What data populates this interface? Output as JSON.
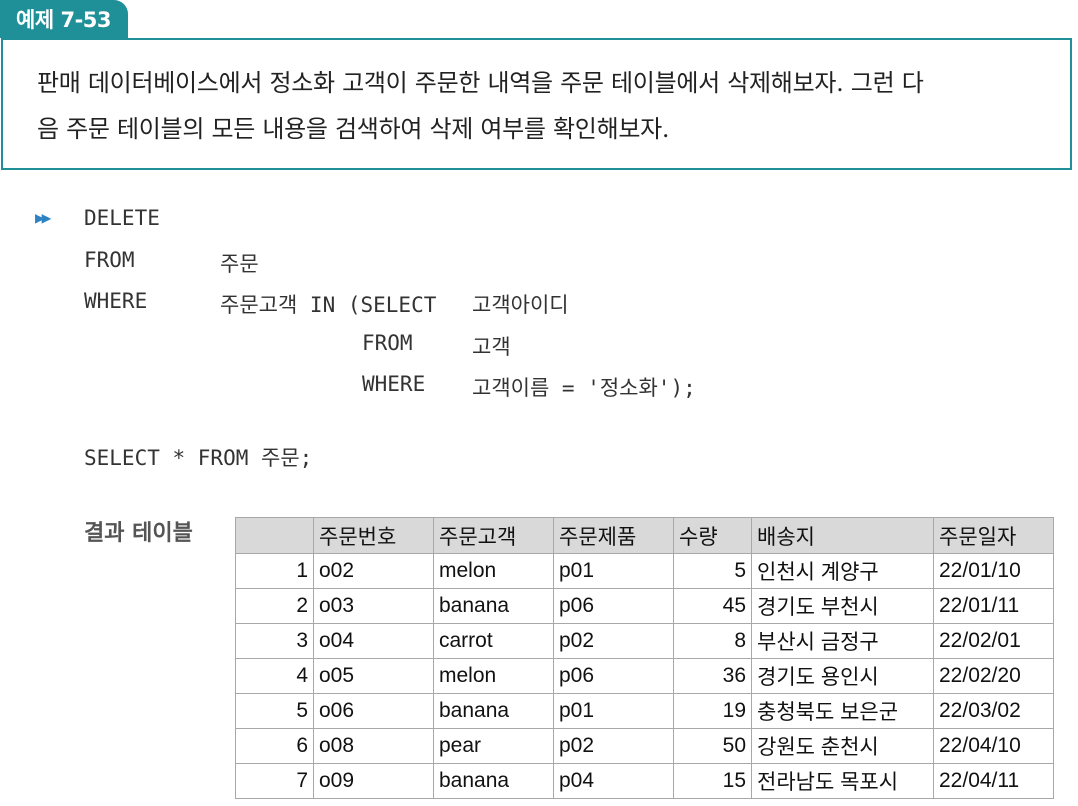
{
  "tag": "예제 7-53",
  "problem": {
    "line1": "판매 데이터베이스에서 정소화 고객이 주문한 내역을 주문 테이블에서 삭제해보자. 그런 다",
    "line2": "음 주문 테이블의 모든 내용을 검색하여 삭제 여부를 확인해보자."
  },
  "code": {
    "marker": "▶▶",
    "l1": "DELETE",
    "l2_kw": "FROM",
    "l2_val": "주문",
    "l3_kw": "WHERE",
    "l3_val": "주문고객 IN (SELECT",
    "l3_col": "고객아이디",
    "l4_kw": "FROM",
    "l4_val": "고객",
    "l5_kw": "WHERE",
    "l5_val": "고객이름 = '정소화');",
    "l6": "SELECT * FROM 주문;"
  },
  "result_label": "결과 테이블",
  "table": {
    "headers": [
      "",
      "주문번호",
      "주문고객",
      "주문제품",
      "수량",
      "배송지",
      "주문일자"
    ],
    "rows": [
      [
        "1",
        "o02",
        "melon",
        "p01",
        "5",
        "인천시 계양구",
        "22/01/10"
      ],
      [
        "2",
        "o03",
        "banana",
        "p06",
        "45",
        "경기도 부천시",
        "22/01/11"
      ],
      [
        "3",
        "o04",
        "carrot",
        "p02",
        "8",
        "부산시 금정구",
        "22/02/01"
      ],
      [
        "4",
        "o05",
        "melon",
        "p06",
        "36",
        "경기도 용인시",
        "22/02/20"
      ],
      [
        "5",
        "o06",
        "banana",
        "p01",
        "19",
        "충청북도 보은군",
        "22/03/02"
      ],
      [
        "6",
        "o08",
        "pear",
        "p02",
        "50",
        "강원도 춘천시",
        "22/04/10"
      ],
      [
        "7",
        "o09",
        "banana",
        "p04",
        "15",
        "전라남도 목포시",
        "22/04/11"
      ]
    ]
  },
  "colors": {
    "accent": "#1f8f98",
    "arrow": "#2d82c4",
    "header_bg": "#d9d9d9"
  }
}
